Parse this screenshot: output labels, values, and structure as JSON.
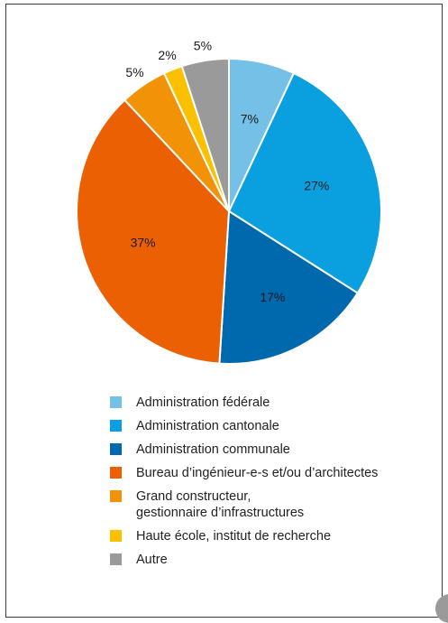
{
  "chart_data": {
    "type": "pie",
    "title": "",
    "slices": [
      {
        "label": "Administration fédérale",
        "value": 7,
        "display": "7%",
        "color": "#74c0e6"
      },
      {
        "label": "Administration cantonale",
        "value": 27,
        "display": "27%",
        "color": "#0aa0df"
      },
      {
        "label": "Administration communale",
        "value": 17,
        "display": "17%",
        "color": "#0068ad"
      },
      {
        "label": "Bureau d’ingénieur-e-s et/ou d’architectes",
        "value": 37,
        "display": "37%",
        "color": "#eb6003"
      },
      {
        "label": "Grand constructeur,\ngestionnaire d’infrastructures",
        "value": 5,
        "display": "5%",
        "color": "#f29207"
      },
      {
        "label": "Haute école, institut de recherche",
        "value": 2,
        "display": "2%",
        "color": "#fbc100"
      },
      {
        "label": "Autre",
        "value": 5,
        "display": "5%",
        "color": "#9a9a9a"
      }
    ],
    "legend_position": "bottom"
  }
}
